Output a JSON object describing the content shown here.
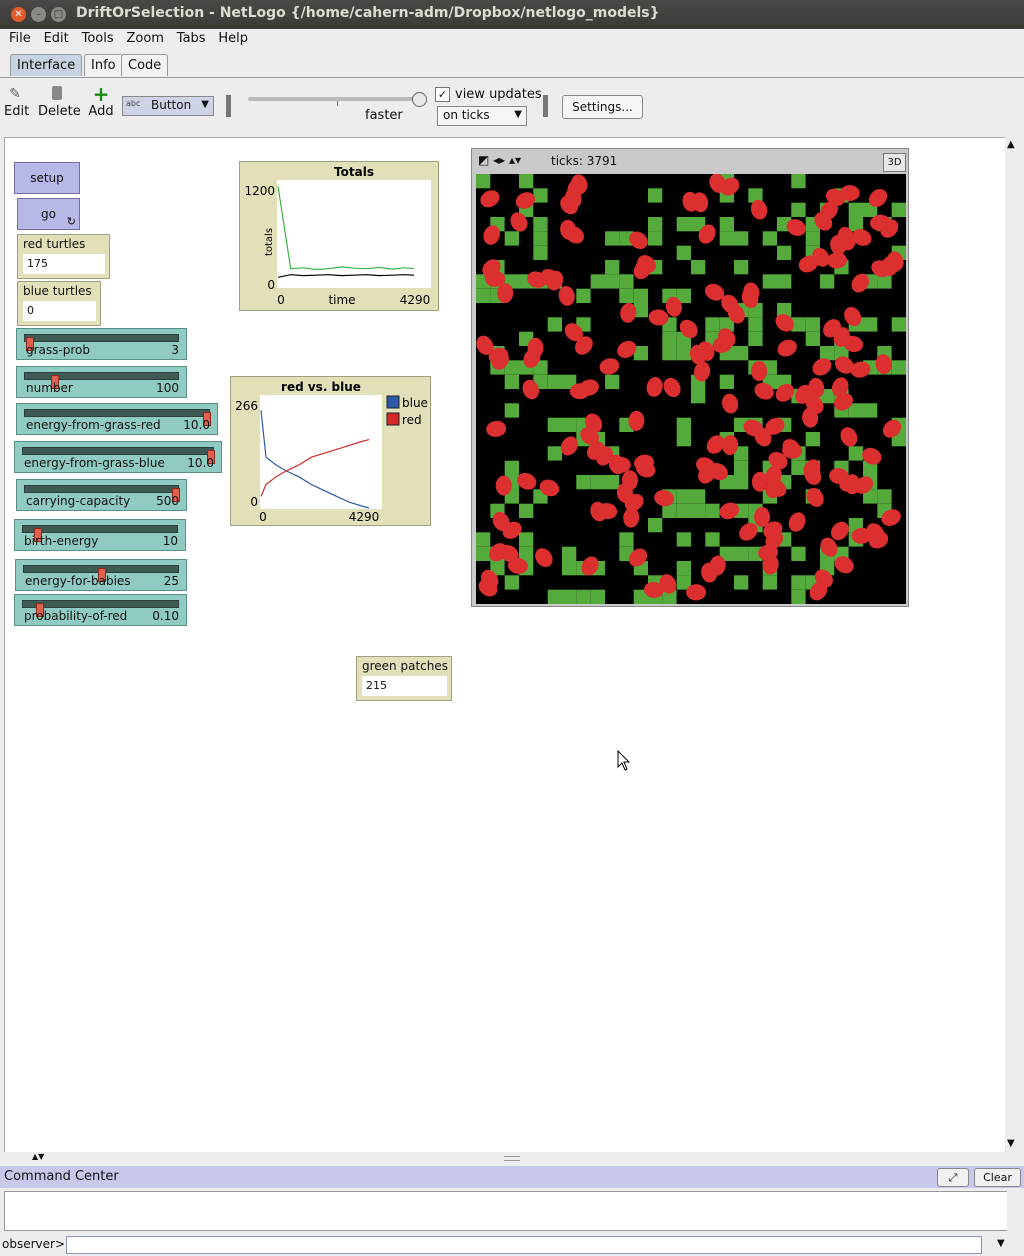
{
  "window": {
    "title": "DriftOrSelection - NetLogo {/home/cahern-adm/Dropbox/netlogo_models}"
  },
  "menu": [
    "File",
    "Edit",
    "Tools",
    "Zoom",
    "Tabs",
    "Help"
  ],
  "tabs": [
    "Interface",
    "Info",
    "Code"
  ],
  "toolbar": {
    "edit": "Edit",
    "delete": "Delete",
    "add": "Add",
    "widget_type": "Button",
    "speed_label": "faster",
    "view_updates": "view updates",
    "update_mode": "on ticks",
    "settings": "Settings..."
  },
  "buttons": {
    "setup": "setup",
    "go": "go"
  },
  "monitors": {
    "red_turtles": {
      "label": "red turtles",
      "value": "175"
    },
    "blue_turtles": {
      "label": "blue turtles",
      "value": "0"
    },
    "green_patches": {
      "label": "green patches",
      "value": "215"
    }
  },
  "sliders": [
    {
      "name": "grass-prob",
      "value": "3",
      "fraction": 0.03
    },
    {
      "name": "number",
      "value": "100",
      "fraction": 0.2
    },
    {
      "name": "energy-from-grass-red",
      "value": "10.0",
      "fraction": 1.0
    },
    {
      "name": "energy-from-grass-blue",
      "value": "10.0",
      "fraction": 1.0
    },
    {
      "name": "carrying-capacity",
      "value": "500",
      "fraction": 1.0
    },
    {
      "name": "birth-energy",
      "value": "10",
      "fraction": 0.08
    },
    {
      "name": "energy-for-babies",
      "value": "25",
      "fraction": 0.5
    },
    {
      "name": "probability-of-red",
      "value": "0.10",
      "fraction": 0.1
    }
  ],
  "view": {
    "ticks": "ticks: 3791",
    "btn3d": "3D"
  },
  "command_center": {
    "title": "Command Center",
    "clear": "Clear",
    "prompt": "observer>"
  },
  "chart_data": [
    {
      "type": "line",
      "title": "Totals",
      "xlabel": "time",
      "ylabel": "totals",
      "xlim": [
        0,
        4290
      ],
      "ylim": [
        0,
        1200
      ],
      "xtick_labels": [
        "0",
        "4290"
      ],
      "ytick_labels": [
        "0",
        "1200"
      ],
      "series": [
        {
          "color": "#3cb043",
          "x": [
            0,
            400,
            800,
            1200,
            1600,
            2000,
            2400,
            2800,
            3200,
            3600,
            4000,
            4290
          ],
          "y": [
            1150,
            200,
            210,
            190,
            200,
            220,
            205,
            200,
            215,
            195,
            210,
            200
          ]
        },
        {
          "color": "#000000",
          "x": [
            0,
            400,
            800,
            1200,
            1600,
            2000,
            2400,
            2800,
            3200,
            3600,
            4000,
            4290
          ],
          "y": [
            100,
            130,
            120,
            125,
            130,
            120,
            125,
            130,
            120,
            125,
            130,
            125
          ]
        }
      ]
    },
    {
      "type": "line",
      "title": "red vs. blue",
      "xlim": [
        0,
        4290
      ],
      "ylim": [
        0,
        266
      ],
      "xtick_labels": [
        "0",
        "4290"
      ],
      "ytick_labels": [
        "0",
        "266"
      ],
      "legend": "right",
      "series": [
        {
          "name": "blue",
          "color": "#2d5aa8",
          "x": [
            0,
            200,
            600,
            1000,
            1500,
            2000,
            2500,
            3000,
            3500,
            4000,
            4290
          ],
          "y": [
            250,
            130,
            110,
            95,
            80,
            60,
            45,
            30,
            15,
            5,
            0
          ]
        },
        {
          "name": "red",
          "color": "#d42a2a",
          "x": [
            0,
            200,
            600,
            1000,
            1500,
            2000,
            2500,
            3000,
            3500,
            4000,
            4290
          ],
          "y": [
            30,
            60,
            80,
            95,
            110,
            130,
            140,
            150,
            160,
            170,
            175
          ]
        }
      ]
    }
  ]
}
